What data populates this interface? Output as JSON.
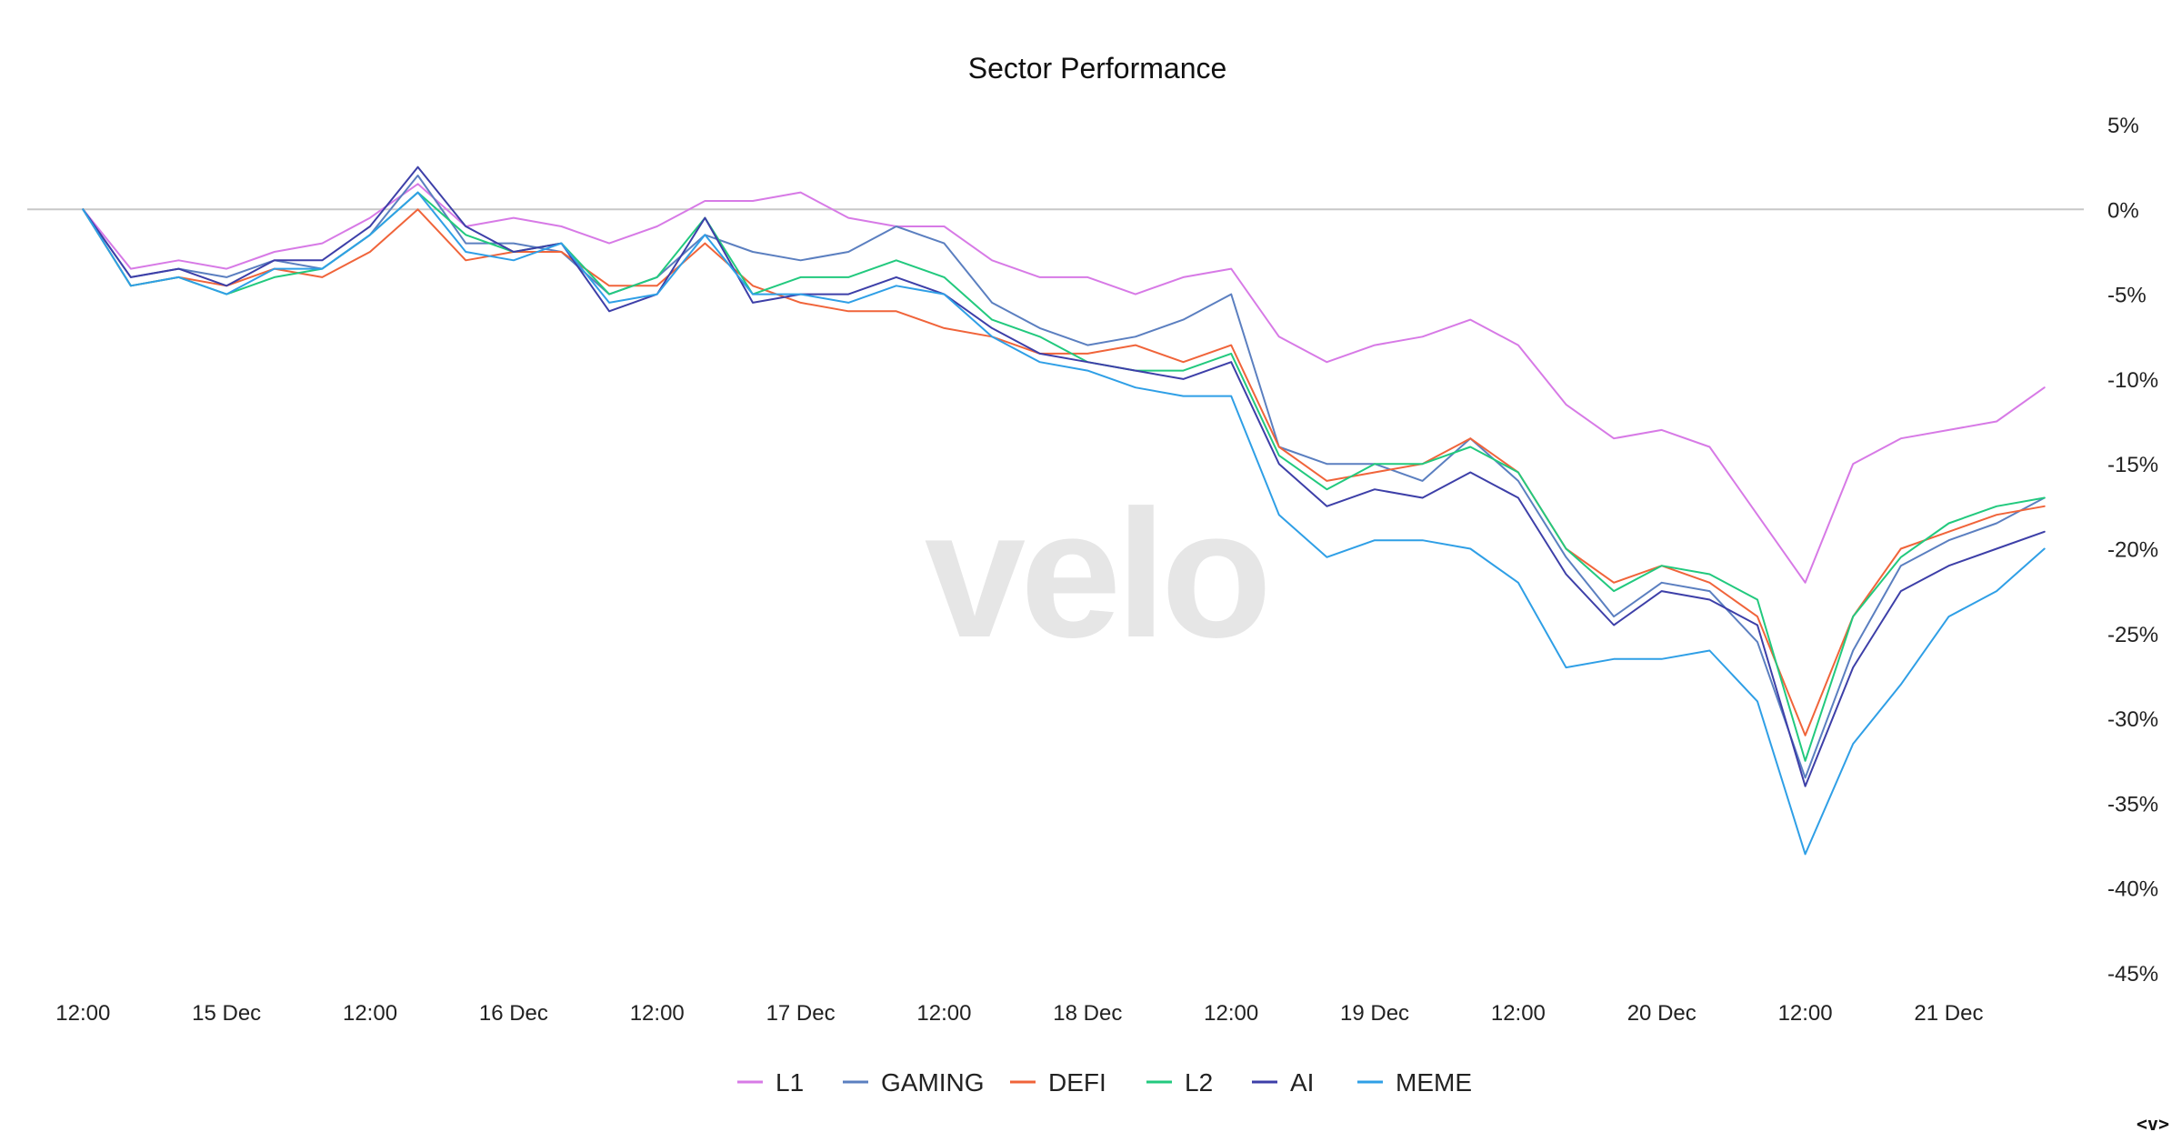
{
  "chart_data": {
    "type": "line",
    "title": "Sector Performance",
    "watermark": "velo",
    "y_axis": {
      "position": "right",
      "ylim": [
        -45,
        5
      ],
      "tick_values": [
        5,
        0,
        -5,
        -10,
        -15,
        -20,
        -25,
        -30,
        -35,
        -40,
        -45
      ],
      "tick_labels": [
        "5%",
        "0%",
        "-5%",
        "-10%",
        "-15%",
        "-20%",
        "-25%",
        "-30%",
        "-35%",
        "-40%",
        "-45%"
      ],
      "zero_line": true
    },
    "x_axis": {
      "unit": "hours",
      "tick_labels": [
        "12:00",
        "15 Dec",
        "12:00",
        "16 Dec",
        "12:00",
        "17 Dec",
        "12:00",
        "18 Dec",
        "12:00",
        "19 Dec",
        "12:00",
        "20 Dec",
        "12:00",
        "21 Dec"
      ],
      "tick_hours": [
        12,
        24,
        36,
        48,
        60,
        72,
        84,
        96,
        108,
        120,
        132,
        144,
        156,
        168
      ]
    },
    "x_hours": [
      12,
      16,
      20,
      24,
      28,
      32,
      36,
      40,
      44,
      48,
      52,
      56,
      60,
      64,
      68,
      72,
      76,
      80,
      84,
      88,
      92,
      96,
      100,
      104,
      108,
      112,
      116,
      120,
      124,
      128,
      132,
      136,
      140,
      144,
      148,
      152,
      156,
      160,
      164,
      168,
      172,
      176
    ],
    "legend": {
      "position": "bottom"
    },
    "grid": false,
    "series": [
      {
        "name": "L1",
        "color": "#d77ae6",
        "values": [
          0,
          -3.5,
          -3,
          -3.5,
          -2.5,
          -2,
          -0.5,
          1.5,
          -1,
          -0.5,
          -1,
          -2,
          -1,
          0.5,
          0.5,
          1,
          -0.5,
          -1,
          -1,
          -3,
          -4,
          -4,
          -5,
          -4,
          -3.5,
          -7.5,
          -9,
          -8,
          -7.5,
          -6.5,
          -8,
          -11.5,
          -13.5,
          -13,
          -14,
          -18,
          -22,
          -15,
          -13.5,
          -13,
          -12.5,
          -10.5
        ]
      },
      {
        "name": "GAMING",
        "color": "#5b7fc0",
        "values": [
          0,
          -4,
          -3.5,
          -4,
          -3,
          -3.5,
          -1.5,
          2,
          -2,
          -2,
          -2.5,
          -5,
          -4,
          -1.5,
          -2.5,
          -3,
          -2.5,
          -1,
          -2,
          -5.5,
          -7,
          -8,
          -7.5,
          -6.5,
          -5,
          -14,
          -15,
          -15,
          -16,
          -13.5,
          -16,
          -20.5,
          -24,
          -22,
          -22.5,
          -25.5,
          -33.5,
          -26,
          -21,
          -19.5,
          -18.5,
          -17
        ]
      },
      {
        "name": "DEFI",
        "color": "#f0643a",
        "values": [
          0,
          -4.5,
          -4,
          -4.5,
          -3.5,
          -4,
          -2.5,
          0,
          -3,
          -2.5,
          -2.5,
          -4.5,
          -4.5,
          -2,
          -4.5,
          -5.5,
          -6,
          -6,
          -7,
          -7.5,
          -8.5,
          -8.5,
          -8,
          -9,
          -8,
          -14,
          -16,
          -15.5,
          -15,
          -13.5,
          -15.5,
          -20,
          -22,
          -21,
          -22,
          -24,
          -31,
          -24,
          -20,
          -19,
          -18,
          -17.5
        ]
      },
      {
        "name": "L2",
        "color": "#22c97e",
        "values": [
          0,
          -4.5,
          -4,
          -5,
          -4,
          -3.5,
          -1.5,
          1,
          -1.5,
          -2.5,
          -2,
          -5,
          -4,
          -0.5,
          -5,
          -4,
          -4,
          -3,
          -4,
          -6.5,
          -7.5,
          -9,
          -9.5,
          -9.5,
          -8.5,
          -14.5,
          -16.5,
          -15,
          -15,
          -14,
          -15.5,
          -20,
          -22.5,
          -21,
          -21.5,
          -23,
          -32.5,
          -24,
          -20.5,
          -18.5,
          -17.5,
          -17
        ]
      },
      {
        "name": "AI",
        "color": "#3d3fa8",
        "values": [
          0,
          -4,
          -3.5,
          -4.5,
          -3,
          -3,
          -1,
          2.5,
          -1,
          -2.5,
          -2,
          -6,
          -5,
          -0.5,
          -5.5,
          -5,
          -5,
          -4,
          -5,
          -7,
          -8.5,
          -9,
          -9.5,
          -10,
          -9,
          -15,
          -17.5,
          -16.5,
          -17,
          -15.5,
          -17,
          -21.5,
          -24.5,
          -22.5,
          -23,
          -24.5,
          -34,
          -27,
          -22.5,
          -21,
          -20,
          -19
        ]
      },
      {
        "name": "MEME",
        "color": "#2f9fe6",
        "values": [
          0,
          -4.5,
          -4,
          -5,
          -3.5,
          -3.5,
          -1.5,
          1,
          -2.5,
          -3,
          -2,
          -5.5,
          -5,
          -1.5,
          -5,
          -5,
          -5.5,
          -4.5,
          -5,
          -7.5,
          -9,
          -9.5,
          -10.5,
          -11,
          -11,
          -18,
          -20.5,
          -19.5,
          -19.5,
          -20,
          -22,
          -27,
          -26.5,
          -26.5,
          -26,
          -29,
          -38,
          -31.5,
          -28,
          -24,
          -22.5,
          -20
        ]
      }
    ]
  },
  "nav": {
    "label": "<v>"
  }
}
